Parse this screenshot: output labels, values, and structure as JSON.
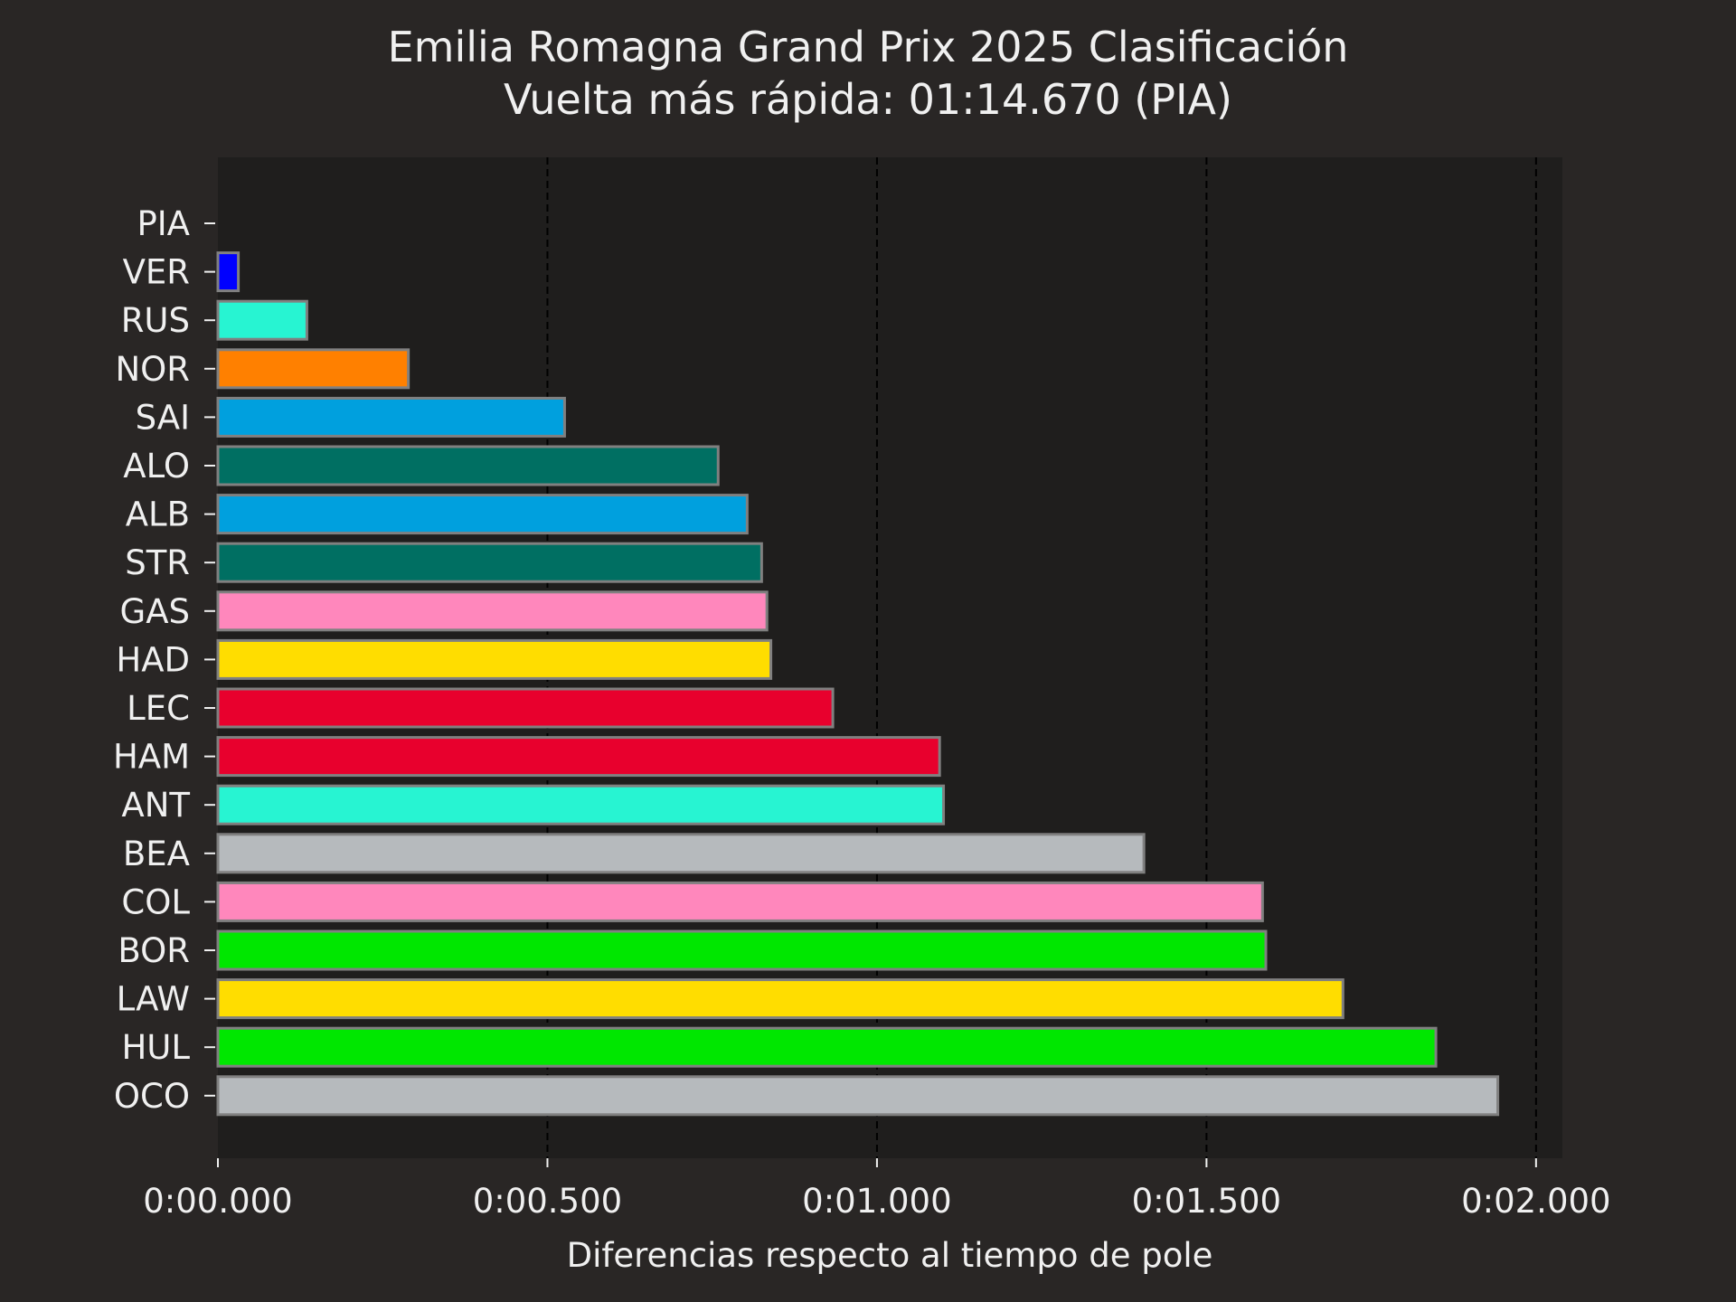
{
  "chart_data": {
    "type": "bar",
    "orientation": "horizontal",
    "title": "Emilia Romagna Grand Prix 2025 Clasificación",
    "subtitle": "Vuelta más rápida: 01:14.670 (PIA)",
    "xlabel": "Diferencias respecto al tiempo de pole",
    "ylabel": "",
    "xlim": [
      0,
      2.04
    ],
    "xticks": [
      {
        "value": 0.0,
        "label": "0:00.000"
      },
      {
        "value": 0.5,
        "label": "0:00.500"
      },
      {
        "value": 1.0,
        "label": "0:01.000"
      },
      {
        "value": 1.5,
        "label": "0:01.500"
      },
      {
        "value": 2.0,
        "label": "0:02.000"
      }
    ],
    "grid": "vertical dashed",
    "categories": [
      "PIA",
      "VER",
      "RUS",
      "NOR",
      "SAI",
      "ALO",
      "ALB",
      "STR",
      "GAS",
      "HAD",
      "LEC",
      "HAM",
      "ANT",
      "BEA",
      "COL",
      "BOR",
      "LAW",
      "HUL",
      "OCO"
    ],
    "values": [
      0.0,
      0.031,
      0.135,
      0.289,
      0.526,
      0.759,
      0.803,
      0.825,
      0.833,
      0.839,
      0.933,
      1.095,
      1.101,
      1.405,
      1.585,
      1.59,
      1.707,
      1.848,
      1.942
    ],
    "colors": [
      "#ff8000",
      "#0000ff",
      "#27f4d2",
      "#ff8000",
      "#00a0de",
      "#006f62",
      "#00a0de",
      "#006f62",
      "#ff87bc",
      "#ffdd00",
      "#e8002d",
      "#e8002d",
      "#27f4d2",
      "#b6babd",
      "#ff87bc",
      "#00e700",
      "#ffdd00",
      "#00e700",
      "#b6babd"
    ]
  },
  "style": {
    "background": "#292625",
    "plot_background": "#1f1e1d",
    "text_color": "#f0f0f0",
    "grid_color": "#000000",
    "bar_edge_color": "#808080"
  }
}
